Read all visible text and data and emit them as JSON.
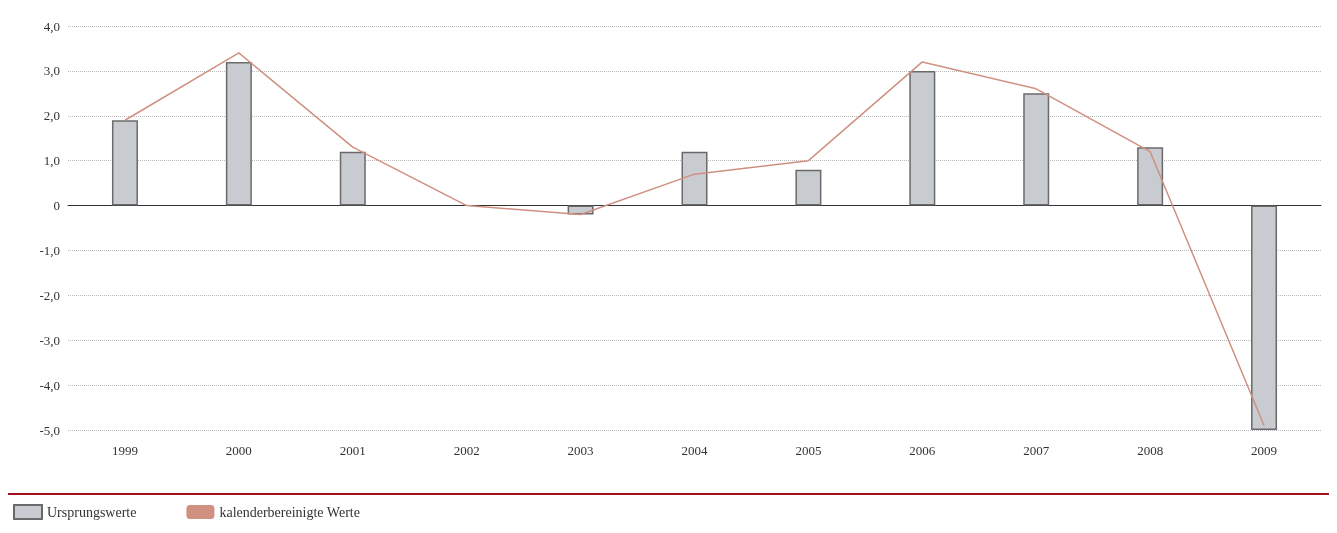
{
  "chart_data": {
    "type": "bar",
    "categories": [
      "1999",
      "2000",
      "2001",
      "2002",
      "2003",
      "2004",
      "2005",
      "2006",
      "2007",
      "2008",
      "2009"
    ],
    "series": [
      {
        "name": "Ursprungswerte",
        "color": "#c8ccd0",
        "values": [
          1.9,
          3.2,
          1.2,
          null,
          -0.2,
          1.2,
          0.8,
          3.0,
          2.5,
          1.3,
          -5.0
        ]
      },
      {
        "name": "kalenderbereinigte Werte",
        "type": "line",
        "color": "#d09080",
        "values": [
          1.9,
          3.4,
          1.3,
          0.0,
          -0.2,
          0.7,
          1.0,
          3.2,
          2.6,
          1.2,
          -4.9
        ]
      }
    ],
    "ylim": [
      -5,
      4
    ],
    "yticks": [
      {
        "value": -5,
        "label": "-5,0"
      },
      {
        "value": -4,
        "label": "-4,0"
      },
      {
        "value": -3,
        "label": "-3,0"
      },
      {
        "value": -2,
        "label": "-2,0"
      },
      {
        "value": -1,
        "label": "-1,0"
      },
      {
        "value": 0,
        "label": "0"
      },
      {
        "value": 1,
        "label": "1,0"
      },
      {
        "value": 2,
        "label": "2,0"
      },
      {
        "value": 3,
        "label": "3,0"
      },
      {
        "value": 4,
        "label": "4,0"
      }
    ],
    "grid": "y",
    "legend": "bottom left",
    "marker": "none",
    "line_style": "solid"
  }
}
